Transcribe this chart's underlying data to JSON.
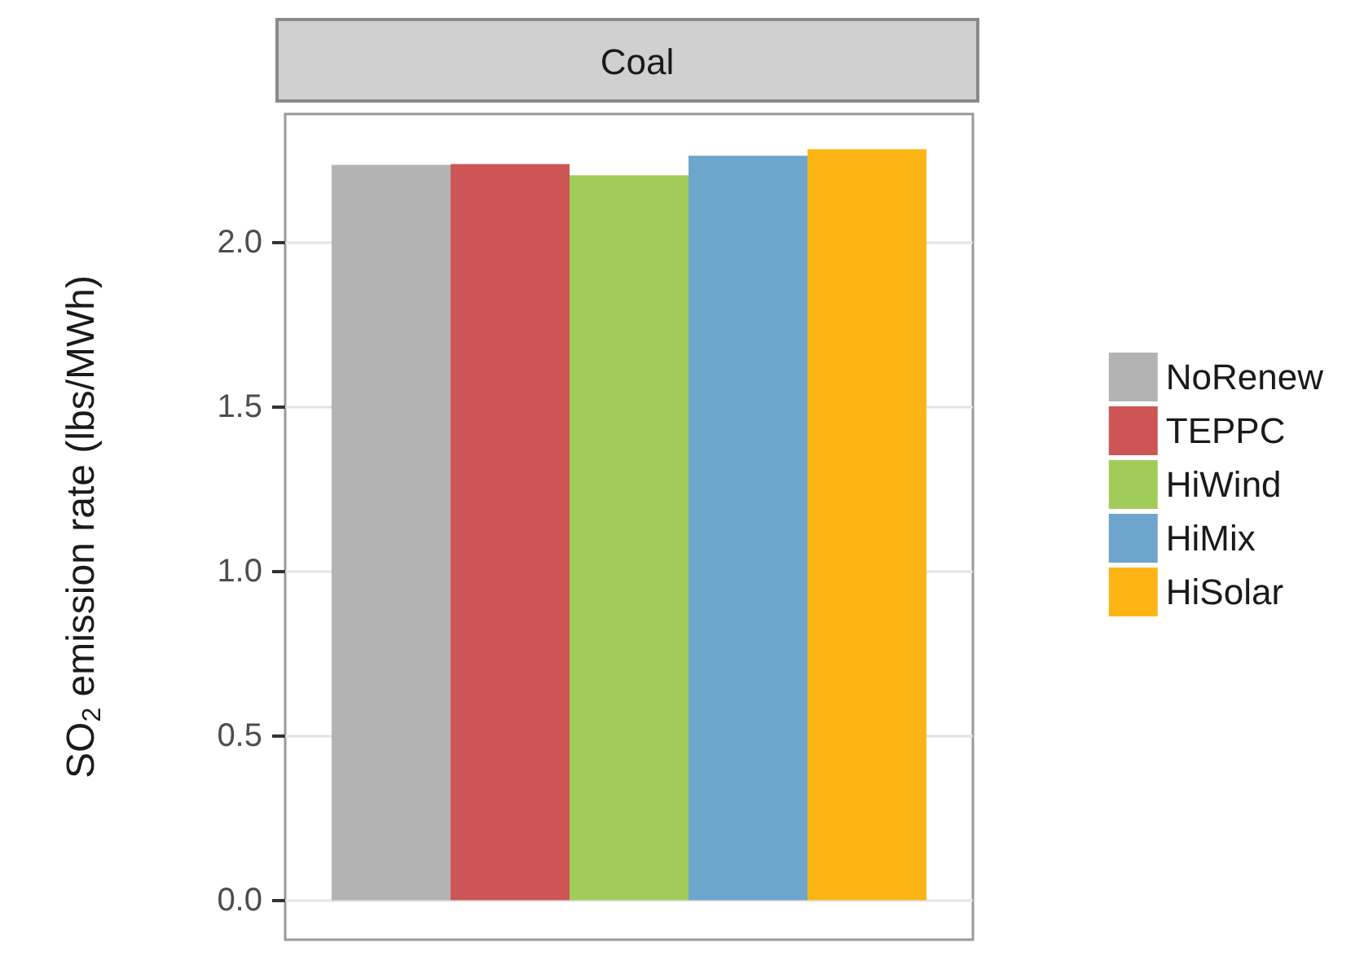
{
  "chart_data": {
    "type": "bar",
    "title": "Coal",
    "ylabel": "SO$_{2}$ emission rate (lbs/MWh)",
    "categories": [
      null
    ],
    "series": [
      {
        "name": "NoRenew",
        "color": "#b3b3b3",
        "values": [
          2.235
        ]
      },
      {
        "name": "TEPPC",
        "color": "#cd5555",
        "values": [
          2.238
        ]
      },
      {
        "name": "HiWind",
        "color": "#a2cc5a",
        "values": [
          2.204
        ]
      },
      {
        "name": "HiMix",
        "color": "#6ea5cd",
        "values": [
          2.263
        ]
      },
      {
        "name": "HiSolar",
        "color": "#fdb515",
        "values": [
          2.283
        ]
      }
    ],
    "ylim": [
      -0.12,
      2.39
    ],
    "yticks": [
      {
        "value": 0,
        "label": "0.0"
      },
      0.5,
      {
        "value": 1,
        "label": "1.0"
      },
      1.5,
      {
        "value": 2,
        "label": "2.0"
      }
    ],
    "grid": "y",
    "legend": "right"
  }
}
